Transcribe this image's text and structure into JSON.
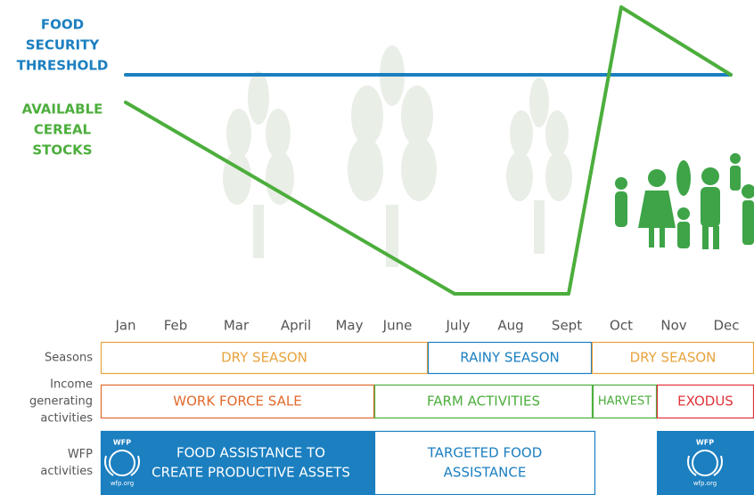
{
  "labels": {
    "threshold": [
      "FOOD",
      "SECURITY",
      "THRESHOLD"
    ],
    "stocks": [
      "AVAILABLE",
      "CEREAL",
      "STOCKS"
    ]
  },
  "months": [
    "Jan",
    "Feb",
    "Mar",
    "April",
    "May",
    "June",
    "July",
    "Aug",
    "Sept",
    "Oct",
    "Nov",
    "Dec"
  ],
  "rows": [
    {
      "label": [
        "Seasons"
      ],
      "cells": [
        [
          "DRY SEASON"
        ],
        [
          "RAINY SEASON"
        ],
        [
          "DRY SEASON"
        ]
      ]
    },
    {
      "label": [
        "Income",
        "generating",
        "activities"
      ],
      "cells": [
        [
          "WORK FORCE SALE"
        ],
        [
          "FARM ACTIVITIES"
        ],
        [
          "HARVEST"
        ],
        [
          "EXODUS"
        ]
      ]
    },
    {
      "label": [
        "WFP",
        "activities"
      ],
      "cells": [
        [
          "FOOD ASSISTANCE TO",
          "CREATE PRODUCTIVE ASSETS"
        ],
        [
          "TARGETED FOOD",
          "ASSISTANCE"
        ]
      ]
    }
  ],
  "logo": {
    "name": "WFP",
    "url": "wfp.org"
  }
}
